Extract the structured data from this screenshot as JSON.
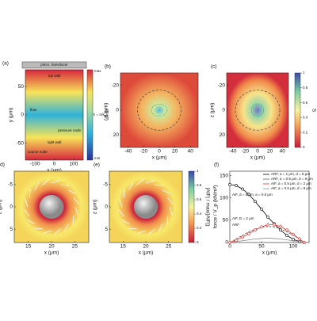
{
  "panels": [
    {
      "label": "(a)",
      "xlabel": "x (μm)",
      "ylabel": "y (μm)",
      "xlim": [
        -150,
        150
      ],
      "ylim": [
        -80,
        80
      ],
      "xticks": [
        -100,
        0,
        100
      ],
      "yticks": [
        -50,
        0,
        50
      ],
      "yinvert": false,
      "texts": [
        "piezo. transducer",
        "top wall",
        "right wall",
        "flow",
        "h = π/k_y",
        "source node",
        "pressure node"
      ],
      "colorbar": {
        "top": "max",
        "bottom": "min",
        "label": "U (J)"
      }
    },
    {
      "label": "(b)",
      "xlabel": "x (μm)",
      "ylabel": "z (μm)",
      "xlim": [
        -50,
        50
      ],
      "ylim": [
        -30,
        30
      ],
      "xticks": [
        -40,
        -20,
        0,
        20,
        40
      ],
      "yticks": [
        -20,
        0,
        20
      ],
      "yinvert": true
    },
    {
      "label": "(c)",
      "xlabel": "x (μm)",
      "ylabel": "z (μm)",
      "xlim": [
        -50,
        50
      ],
      "ylim": [
        -30,
        30
      ],
      "xticks": [
        -40,
        -20,
        0,
        20,
        40
      ],
      "yticks": [
        -20,
        0,
        20
      ],
      "yinvert": true,
      "colorbar": {
        "lim": [
          0,
          1
        ],
        "ticks": [
          0,
          0.2,
          0.4,
          0.6,
          0.8,
          1
        ],
        "label": "S"
      }
    },
    {
      "label": "(d)",
      "xlabel": "x (μm)",
      "ylabel": "z (μm)",
      "xlim": [
        12,
        28
      ],
      "ylim": [
        -8,
        8
      ],
      "xticks": [
        15,
        20,
        25
      ],
      "yticks": [
        -5,
        0,
        5
      ],
      "yinvert": true
    },
    {
      "label": "(e)",
      "xlabel": "x (μm)",
      "ylabel": "z (μm)",
      "xlim": [
        12,
        28
      ],
      "ylim": [
        -8,
        8
      ],
      "xticks": [
        15,
        20,
        25
      ],
      "yticks": [
        -5,
        0,
        5
      ],
      "yinvert": true,
      "colorbar": {
        "lim": [
          0,
          1
        ],
        "ticks": [
          0,
          0.2,
          0.4,
          0.6,
          0.8,
          1
        ],
        "label": "|AIF| / max(|AIF|)"
      }
    },
    {
      "label": "(f)",
      "xlabel": "x (μm)",
      "ylabel": "force / V_p (kN/m³)",
      "xlim": [
        0,
        125
      ],
      "ylim": [
        0,
        160
      ],
      "xticks": [
        0,
        50,
        100
      ],
      "yticks": [
        0,
        50,
        100,
        150
      ],
      "yinvert": false,
      "texts": [
        "AIF, d = 8 μm, a = 0.5 μm",
        "AIF, D = 2 μm",
        "ARF"
      ],
      "x": [
        0,
        10,
        20,
        30,
        40,
        50,
        60,
        70,
        80,
        90,
        100,
        110,
        117
      ],
      "series": [
        {
          "name": "ARF, a = 1 μm, d = 8 μm",
          "color": "#000000",
          "marker": "circle",
          "values": [
            130,
            128,
            120,
            108,
            92,
            75,
            57,
            42,
            28,
            16,
            7,
            2,
            0
          ]
        },
        {
          "name": "ARF, a = 0.5 μm, d = 8 μm",
          "color": "#555555",
          "marker": "none",
          "values": [
            0,
            8,
            16,
            24,
            30,
            34,
            36,
            35,
            31,
            24,
            16,
            8,
            0
          ]
        },
        {
          "name": "AIF, a = 0.5 μm, d = 2 μm",
          "color": "#e8322d",
          "marker": "diamond",
          "values": [
            0,
            5,
            12,
            20,
            28,
            35,
            40,
            40,
            36,
            28,
            18,
            8,
            0
          ]
        },
        {
          "name": "AIF, a = 0.5 μm, d = 8 μm",
          "color": "#888888",
          "marker": "none",
          "values": [
            0,
            2,
            4,
            6,
            8,
            9,
            10,
            9,
            8,
            6,
            4,
            2,
            0
          ]
        }
      ]
    }
  ]
}
